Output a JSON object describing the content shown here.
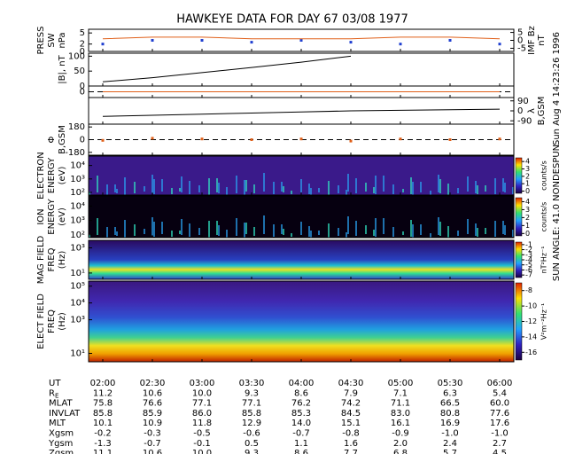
{
  "header": {
    "title": "HAWKEYE DATA FOR DAY  67 03/08 1977",
    "timestamp": "Sun Aug  4 14:23:26 1996",
    "sun_angle": "SUN ANGLE:  41.0 NONDESPUN"
  },
  "panels": [
    {
      "label": [
        "PRESS",
        "SW",
        "nPa"
      ],
      "ylim": [
        0,
        6
      ],
      "yticks": [
        0,
        2,
        5
      ],
      "values": [
        2,
        3,
        3,
        2.5,
        3,
        2.5,
        2,
        3,
        2
      ],
      "color": "#1f3fd0",
      "right_label": [
        "IMF Bz",
        "nT"
      ],
      "y2lim": [
        -7,
        7
      ],
      "y2ticks": [
        -5,
        0,
        5
      ],
      "y2values": [
        1,
        2,
        2,
        1,
        1,
        1,
        2,
        2,
        1
      ],
      "y2color": "#e0601a"
    },
    {
      "label": [
        "|B|, nT"
      ],
      "ylim": [
        0,
        110
      ],
      "yticks": [
        0,
        50,
        100
      ],
      "values": [
        14,
        28,
        45,
        62,
        80,
        100,
        null,
        null,
        null
      ],
      "color": "#000000"
    },
    {
      "ylim": [
        -5,
        5
      ],
      "yticks": [
        0
      ],
      "values": [
        0,
        0,
        0,
        0,
        0,
        0,
        0,
        0,
        0
      ],
      "color": "#e0601a"
    },
    {
      "right_label": [
        "λ",
        "B,GSM"
      ],
      "y2lim": [
        -120,
        120
      ],
      "y2ticks": [
        -90,
        0,
        90
      ],
      "y2values": [
        -50,
        -40,
        -30,
        -20,
        -10,
        0,
        5,
        10,
        15
      ],
      "y2color": "#000000"
    },
    {
      "label": [
        "Φ",
        "B,GSM"
      ],
      "ylim": [
        -220,
        220
      ],
      "yticks": [
        -180,
        0,
        180
      ],
      "values": [
        -10,
        20,
        10,
        0,
        10,
        -20,
        10,
        0,
        10
      ],
      "color": "#e0601a"
    },
    {
      "label": [
        "ELECTRON",
        "ENERGY",
        "(eV)"
      ],
      "ylim": [
        1.8,
        4.7
      ],
      "yticks": [
        {
          "value": 2,
          "label": "10²"
        },
        {
          "value": 3,
          "label": "10³"
        },
        {
          "value": 4,
          "label": "10⁴"
        }
      ],
      "colorbar": {
        "label": "counts/s",
        "lim": [
          -0.3,
          4.5
        ],
        "ticks": [
          0,
          1,
          2,
          3,
          4
        ]
      }
    },
    {
      "label": [
        "ION",
        "ENERGY",
        "(eV)"
      ],
      "ylim": [
        1.8,
        4.7
      ],
      "yticks": [
        {
          "value": 2,
          "label": "10²"
        },
        {
          "value": 3,
          "label": "10³"
        },
        {
          "value": 4,
          "label": "10⁴"
        }
      ],
      "colorbar": {
        "label": "counts/s",
        "lim": [
          -0.3,
          4.5
        ],
        "ticks": [
          0,
          1,
          2,
          3,
          4
        ]
      }
    },
    {
      "label": [
        "MAG FIELD",
        "FREQ",
        "(Hz)"
      ],
      "ylim": [
        0.5,
        3.6
      ],
      "yticks": [
        {
          "value": 1,
          "label": "10¹"
        },
        {
          "value": 3,
          "label": "10³"
        }
      ],
      "colorbar": {
        "label": "nT²Hz⁻¹",
        "lim": [
          -7.5,
          -0.5
        ],
        "ticks": [
          -7,
          -6,
          -5,
          -4,
          -3,
          -2,
          -1
        ]
      }
    },
    {
      "label": [
        "ELECT FIELD",
        "FREQ",
        "(Hz)"
      ],
      "ylim": [
        0.5,
        5.3
      ],
      "yticks": [
        {
          "value": 1,
          "label": "10¹"
        },
        {
          "value": 3,
          "label": "10³"
        },
        {
          "value": 4,
          "label": "10⁴"
        },
        {
          "value": 5,
          "label": "10⁵"
        }
      ],
      "colorbar": {
        "label": "V²m⁻²Hz⁻¹",
        "lim": [
          -17,
          -7
        ],
        "ticks": [
          -16,
          -14,
          -12,
          -10,
          -8
        ]
      }
    }
  ],
  "ephemeris": {
    "row_labels": [
      "UT",
      [
        "R",
        "E"
      ],
      "MLAT",
      "INVLAT",
      "MLT",
      "Xgsm",
      "Ygsm",
      "Zgsm"
    ],
    "rows": [
      [
        "02:00",
        "02:30",
        "03:00",
        "03:30",
        "04:00",
        "04:30",
        "05:00",
        "05:30",
        "06:00"
      ],
      [
        "11.2",
        "10.6",
        "10.0",
        "9.3",
        "8.6",
        "7.9",
        "7.1",
        "6.3",
        "5.4"
      ],
      [
        "75.8",
        "76.6",
        "77.1",
        "77.1",
        "76.2",
        "74.2",
        "71.1",
        "66.5",
        "60.0"
      ],
      [
        "85.8",
        "85.9",
        "86.0",
        "85.8",
        "85.3",
        "84.5",
        "83.0",
        "80.8",
        "77.6"
      ],
      [
        "10.1",
        "10.9",
        "11.8",
        "12.9",
        "14.0",
        "15.1",
        "16.1",
        "16.9",
        "17.6"
      ],
      [
        "-0.2",
        "-0.3",
        "-0.5",
        "-0.6",
        "-0.7",
        "-0.8",
        "-0.9",
        "-1.0",
        "-1.0"
      ],
      [
        "-1.3",
        "-0.7",
        "-0.1",
        "0.5",
        "1.1",
        "1.6",
        "2.0",
        "2.4",
        "2.7"
      ],
      [
        "11.1",
        "10.6",
        "10.0",
        "9.3",
        "8.6",
        "7.7",
        "6.8",
        "5.7",
        "4.5"
      ]
    ]
  }
}
